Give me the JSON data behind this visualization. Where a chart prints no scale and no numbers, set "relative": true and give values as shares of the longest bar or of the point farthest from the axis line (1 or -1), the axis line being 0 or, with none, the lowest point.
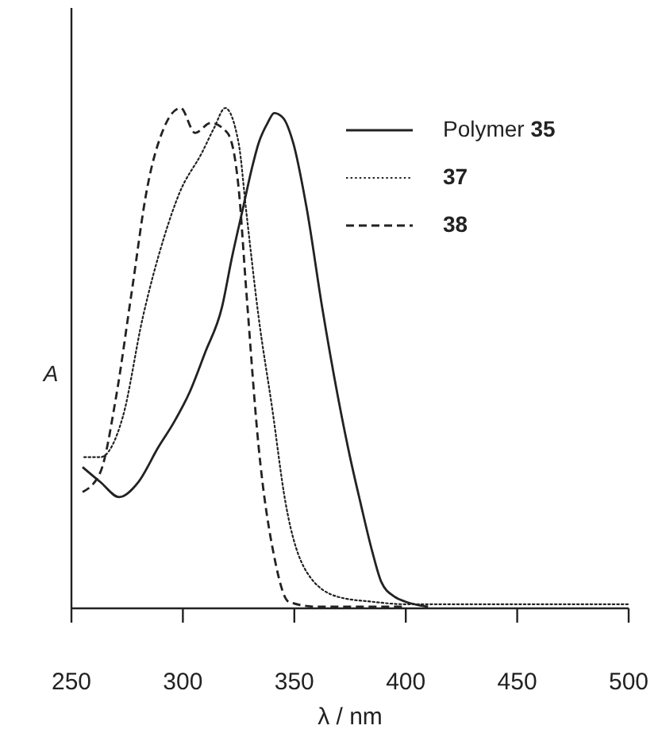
{
  "chart_data": {
    "type": "line",
    "relative": true,
    "xlabel": "λ / nm",
    "ylabel": "A",
    "xlim": [
      250,
      500
    ],
    "xticks": [
      250,
      300,
      350,
      400,
      450,
      500
    ],
    "legend": "top right",
    "grid": false,
    "series": [
      {
        "name": "Polymer 35",
        "color": "#222222",
        "line_style": "solid",
        "x": [
          255,
          263,
          271.4,
          280,
          289,
          296,
          303,
          310,
          317.5,
          322,
          327,
          331,
          334,
          338,
          341,
          345,
          349.5,
          355.5,
          362.5,
          369.6,
          375,
          379.6,
          385,
          389,
          395,
          400,
          410
        ],
        "values": [
          0.28,
          0.25,
          0.22,
          0.25,
          0.32,
          0.37,
          0.43,
          0.51,
          0.6,
          0.7,
          0.8,
          0.88,
          0.93,
          0.97,
          0.99,
          0.98,
          0.93,
          0.8,
          0.6,
          0.42,
          0.3,
          0.21,
          0.11,
          0.05,
          0.02,
          0.01,
          0
        ]
      },
      {
        "name": "37",
        "color": "#222222",
        "line_style": "dotted",
        "x": [
          255.7,
          263,
          273,
          282,
          291.5,
          298.5,
          308.5,
          314,
          319,
          325,
          328.5,
          334,
          340,
          346,
          355.5,
          369.5,
          385,
          400,
          500
        ],
        "values": [
          0.3,
          0.3,
          0.38,
          0.58,
          0.74,
          0.83,
          0.91,
          0.96,
          1.0,
          0.93,
          0.79,
          0.58,
          0.4,
          0.21,
          0.07,
          0.02,
          0.01,
          0.005,
          0.005
        ]
      },
      {
        "name": "38",
        "color": "#222222",
        "line_style": "dashed",
        "x": [
          255,
          263,
          270,
          277,
          284,
          291.5,
          299,
          305.5,
          312.5,
          320,
          325,
          328.5,
          334,
          341,
          347.5,
          360,
          400
        ],
        "values": [
          0.23,
          0.27,
          0.42,
          0.63,
          0.84,
          0.96,
          1.0,
          0.95,
          0.97,
          0.95,
          0.84,
          0.63,
          0.32,
          0.1,
          0.01,
          0,
          0
        ]
      }
    ]
  }
}
